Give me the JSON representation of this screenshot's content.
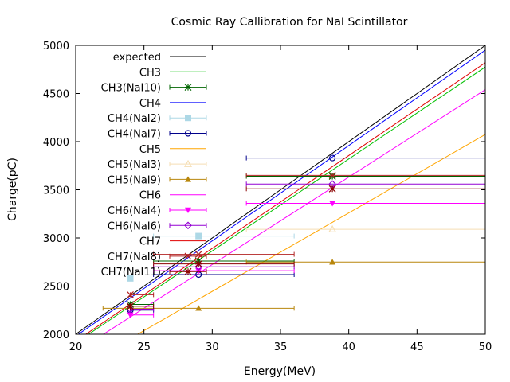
{
  "chart_data": {
    "type": "scatter",
    "title": "Cosmic Ray Callibration for NaI Scintillator",
    "xlabel": "Energy(MeV)",
    "ylabel": "Charge(pC)",
    "xlim": [
      20,
      50
    ],
    "ylim": [
      2000,
      5000
    ],
    "xticks": [
      20,
      25,
      30,
      35,
      40,
      45,
      50
    ],
    "yticks": [
      2000,
      2500,
      3000,
      3500,
      4000,
      4500,
      5000
    ],
    "grid": false,
    "legend_position": "top-left",
    "lines": [
      {
        "name": "expected",
        "color": "#000000",
        "slope": 100.0,
        "intercept": 0
      },
      {
        "name": "CH3",
        "color": "#00c000",
        "slope": 95.5,
        "intercept": 0
      },
      {
        "name": "CH4",
        "color": "#0000ff",
        "slope": 99.0,
        "intercept": 0
      },
      {
        "name": "CH5",
        "color": "#ffa500",
        "slope": 81.5,
        "intercept": 0
      },
      {
        "name": "CH6",
        "color": "#ff00ff",
        "slope": 90.8,
        "intercept": 0
      },
      {
        "name": "CH7",
        "color": "#e00000",
        "slope": 96.4,
        "intercept": 0
      }
    ],
    "series": [
      {
        "name": "CH3(NaI10)",
        "color": "#006400",
        "marker": "star",
        "points": [
          {
            "x": 24,
            "y": 2310,
            "xerr": [
              24,
              25.7
            ]
          },
          {
            "x": 29,
            "y": 2760,
            "xerr": [
              25.7,
              36
            ]
          },
          {
            "x": 38.8,
            "y": 3640,
            "xerr": [
              32.5,
              50
            ]
          }
        ]
      },
      {
        "name": "CH4(NaI2)",
        "color": "#add8e6",
        "marker": "square-filled",
        "points": [
          {
            "x": 24,
            "y": 2580,
            "xerr": [
              24,
              24
            ]
          },
          {
            "x": 29,
            "y": 3020,
            "xerr": [
              25.7,
              36
            ]
          }
        ]
      },
      {
        "name": "CH4(NaI7)",
        "color": "#00008b",
        "marker": "circle",
        "points": [
          {
            "x": 24,
            "y": 2250,
            "xerr": [
              24,
              25.7
            ]
          },
          {
            "x": 29,
            "y": 2620,
            "xerr": [
              25.7,
              36
            ]
          },
          {
            "x": 38.8,
            "y": 3830,
            "xerr": [
              32.5,
              50
            ]
          }
        ]
      },
      {
        "name": "CH5(NaI3)",
        "color": "#f5deb3",
        "marker": "triangle",
        "points": [
          {
            "x": 38.8,
            "y": 3090,
            "xerr": [
              32.5,
              50
            ]
          }
        ]
      },
      {
        "name": "CH5(NaI9)",
        "color": "#b8860b",
        "marker": "triangle-filled",
        "points": [
          {
            "x": 29,
            "y": 2270,
            "xerr": [
              22,
              36
            ]
          },
          {
            "x": 38.8,
            "y": 2750,
            "xerr": [
              32.5,
              50
            ]
          }
        ]
      },
      {
        "name": "CH6(NaI4)",
        "color": "#ff00ff",
        "marker": "triangle-down-filled",
        "points": [
          {
            "x": 24,
            "y": 2200,
            "xerr": [
              24,
              25.7
            ]
          },
          {
            "x": 29,
            "y": 2660,
            "xerr": [
              25.7,
              36
            ]
          },
          {
            "x": 38.8,
            "y": 3360,
            "xerr": [
              32.5,
              50
            ]
          }
        ]
      },
      {
        "name": "CH6(NaI6)",
        "color": "#9400d3",
        "marker": "diamond",
        "points": [
          {
            "x": 24,
            "y": 2260,
            "xerr": [
              24,
              25.7
            ]
          },
          {
            "x": 29,
            "y": 2700,
            "xerr": [
              25.7,
              36
            ]
          },
          {
            "x": 38.8,
            "y": 3560,
            "xerr": [
              32.5,
              50
            ]
          }
        ]
      },
      {
        "name": "CH7(NaI8)",
        "color": "#b22222",
        "marker": "cross",
        "points": [
          {
            "x": 24,
            "y": 2410,
            "xerr": [
              24,
              25.7
            ]
          },
          {
            "x": 29,
            "y": 2830,
            "xerr": [
              25.7,
              36
            ]
          },
          {
            "x": 38.8,
            "y": 3650,
            "xerr": [
              32.5,
              50
            ]
          }
        ]
      },
      {
        "name": "CH7(NaI11)",
        "color": "#8b0000",
        "marker": "star",
        "points": [
          {
            "x": 24,
            "y": 2290,
            "xerr": [
              24,
              25.7
            ]
          },
          {
            "x": 29,
            "y": 2730,
            "xerr": [
              25.7,
              36
            ]
          },
          {
            "x": 38.8,
            "y": 3510,
            "xerr": [
              32.5,
              50
            ]
          }
        ]
      }
    ],
    "legend": [
      "expected",
      "CH3",
      "CH3(NaI10)",
      "CH4",
      "CH4(NaI2)",
      "CH4(NaI7)",
      "CH5",
      "CH5(NaI3)",
      "CH5(NaI9)",
      "CH6",
      "CH6(NaI4)",
      "CH6(NaI6)",
      "CH7",
      "CH7(NaI8)",
      "CH7(NaI11)"
    ]
  }
}
